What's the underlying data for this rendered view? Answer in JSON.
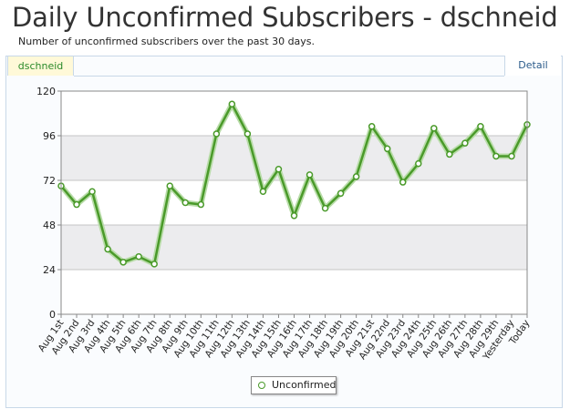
{
  "page": {
    "title": "Daily Unconfirmed Subscribers - dschneid",
    "subtitle": "Number of unconfirmed subscribers over the past 30 days."
  },
  "tabs": {
    "active_label": "dschneid",
    "detail_label": "Detail"
  },
  "colors": {
    "line": "#4a9a2a",
    "band": "#ececee"
  },
  "chart_data": {
    "type": "line",
    "categories": [
      "Aug 1st",
      "Aug 2nd",
      "Aug 3rd",
      "Aug 4th",
      "Aug 5th",
      "Aug 6th",
      "Aug 7th",
      "Aug 8th",
      "Aug 9th",
      "Aug 10th",
      "Aug 11th",
      "Aug 12th",
      "Aug 13th",
      "Aug 14th",
      "Aug 15th",
      "Aug 16th",
      "Aug 17th",
      "Aug 18th",
      "Aug 19th",
      "Aug 20th",
      "Aug 21st",
      "Aug 22nd",
      "Aug 23rd",
      "Aug 24th",
      "Aug 25th",
      "Aug 26th",
      "Aug 27th",
      "Aug 28th",
      "Aug 29th",
      "Yesterday",
      "Today"
    ],
    "series": [
      {
        "name": "Unconfirmed",
        "values": [
          69,
          59,
          66,
          35,
          28,
          31,
          27,
          69,
          60,
          59,
          97,
          113,
          97,
          66,
          78,
          53,
          75,
          57,
          65,
          74,
          101,
          89,
          71,
          81,
          100,
          86,
          92,
          101,
          85,
          85,
          102
        ]
      }
    ],
    "yticks": [
      0,
      24,
      48,
      72,
      96,
      120
    ],
    "ylim": [
      0,
      120
    ],
    "legend": "bottom-center",
    "grid": true
  }
}
